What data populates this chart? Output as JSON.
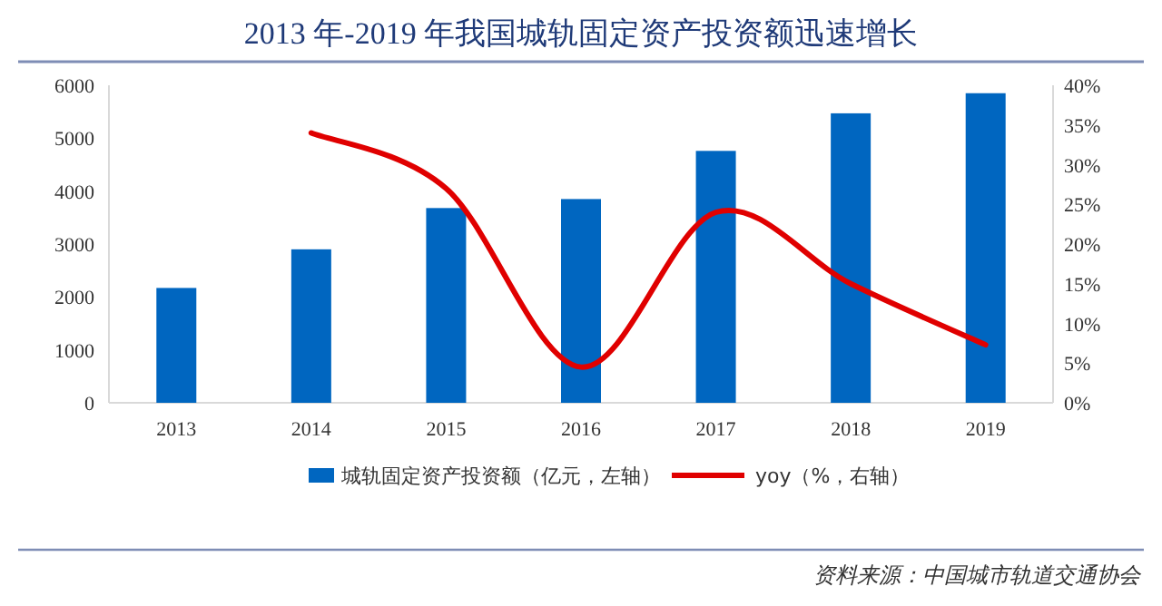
{
  "chart_data": {
    "type": "bar",
    "title": "2013 年-2019 年我国城轨固定资产投资额迅速增长",
    "categories": [
      "2013",
      "2014",
      "2015",
      "2016",
      "2017",
      "2018",
      "2019"
    ],
    "series": [
      {
        "name": "城轨固定资产投资额（亿元，左轴）",
        "color": "#0066c0",
        "values": [
          2170,
          2900,
          3680,
          3850,
          4760,
          5470,
          5850
        ]
      },
      {
        "name": "yoy（%，右轴）",
        "type": "line",
        "axis": "y2",
        "color": "#e00000",
        "values": [
          null,
          34,
          27,
          4.5,
          24,
          15,
          7.3
        ]
      }
    ],
    "ylim": [
      0,
      6000
    ],
    "yticks": [
      0,
      1000,
      2000,
      3000,
      4000,
      5000,
      6000
    ],
    "y2lim": [
      0,
      40
    ],
    "y2ticks": [
      {
        "value": 0,
        "label": "0%"
      },
      {
        "value": 5,
        "label": "5%"
      },
      {
        "value": 10,
        "label": "10%"
      },
      {
        "value": 15,
        "label": "15%"
      },
      {
        "value": 20,
        "label": "20%"
      },
      {
        "value": 25,
        "label": "25%"
      },
      {
        "value": 30,
        "label": "30%"
      },
      {
        "value": 35,
        "label": "35%"
      },
      {
        "value": 40,
        "label": "40%"
      }
    ],
    "legend": "bottom",
    "annotations": [
      "资料来源：中国城市轨道交通协会"
    ]
  }
}
